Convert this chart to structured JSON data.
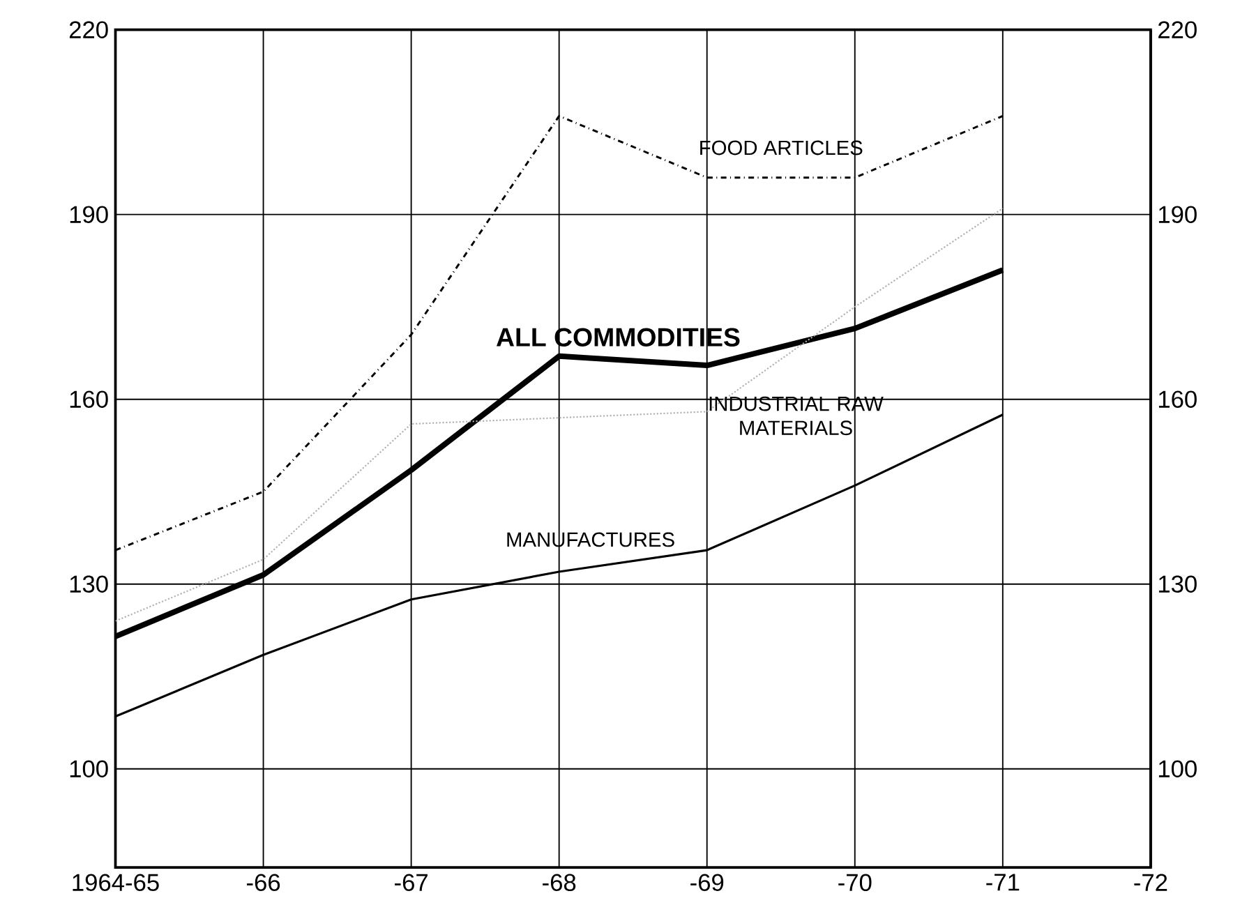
{
  "chart_data": {
    "type": "line",
    "categories": [
      "1964-65",
      "-66",
      "-67",
      "-68",
      "-69",
      "-70",
      "-71",
      "-72"
    ],
    "series": [
      {
        "name": "FOOD ARTICLES",
        "color": "#000000",
        "line_style": "dashed",
        "values": [
          135.5,
          145,
          170.5,
          206,
          196,
          196,
          206,
          null
        ]
      },
      {
        "name": "ALL COMMODITIES",
        "color": "#000000",
        "line_style": "solid",
        "values": [
          121.5,
          131.5,
          148.5,
          167,
          165.5,
          171.5,
          181,
          null
        ]
      },
      {
        "name": "INDUSTRIAL RAW MATERIALS",
        "color": "#b0b0b0",
        "line_style": "dotted",
        "values": [
          124,
          134,
          156,
          157,
          158,
          175,
          191,
          null
        ]
      },
      {
        "name": "MANUFACTURES",
        "color": "#000000",
        "line_style": "solid",
        "values": [
          108.5,
          118.5,
          127.5,
          132,
          135.5,
          146,
          157.5,
          null
        ]
      }
    ],
    "ylim": [
      84,
      220
    ],
    "yticks": [
      100,
      130,
      160,
      190,
      220
    ],
    "y2lim": [
      84,
      220
    ],
    "y2ticks": [
      100,
      130,
      160,
      190,
      220
    ],
    "grid": true,
    "marker": "none"
  }
}
